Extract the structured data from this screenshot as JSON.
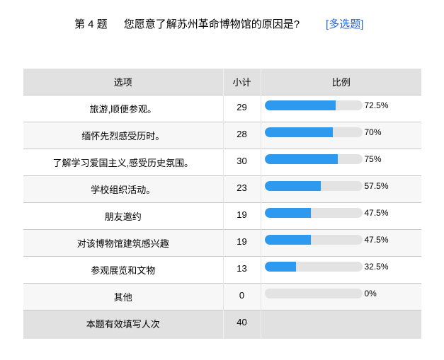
{
  "question": {
    "number_label": "第 4 题",
    "text": "您愿意了解苏州革命博物馆的原因是?",
    "type_tag": "[多选题]"
  },
  "table": {
    "columns": [
      "选项",
      "小计",
      "比例"
    ],
    "rows": [
      {
        "option": "旅游,顺便参观。",
        "count": 29,
        "percent": 72.5,
        "percent_label": "72.5%"
      },
      {
        "option": "缅怀先烈感受历时。",
        "count": 28,
        "percent": 70,
        "percent_label": "70%"
      },
      {
        "option": "了解学习爱国主义,感受历史氛围。",
        "count": 30,
        "percent": 75,
        "percent_label": "75%"
      },
      {
        "option": "学校组织活动。",
        "count": 23,
        "percent": 57.5,
        "percent_label": "57.5%"
      },
      {
        "option": "朋友邀约",
        "count": 19,
        "percent": 47.5,
        "percent_label": "47.5%"
      },
      {
        "option": "对该博物馆建筑感兴趣",
        "count": 19,
        "percent": 47.5,
        "percent_label": "47.5%"
      },
      {
        "option": "参观展览和文物",
        "count": 13,
        "percent": 32.5,
        "percent_label": "32.5%"
      },
      {
        "option": "其他",
        "count": 0,
        "percent": 0,
        "percent_label": "0%"
      }
    ],
    "footer": {
      "label": "本题有效填写人次",
      "count": 40
    }
  },
  "colors": {
    "bar_fill": "#2E9AEF",
    "bar_track": "#E3E3E3",
    "header_bg": "#E1E1E1",
    "row_alt_bg": "#F7F7F7",
    "border": "#C9C9C9",
    "link_blue": "#2266EE"
  },
  "chart_data": {
    "type": "bar",
    "title": "第 4 题 您愿意了解苏州革命博物馆的原因是? [多选题]",
    "categories": [
      "旅游,顺便参观。",
      "缅怀先烈感受历时。",
      "了解学习爱国主义,感受历史氛围。",
      "学校组织活动。",
      "朋友邀约",
      "对该博物馆建筑感兴趣",
      "参观展览和文物",
      "其他"
    ],
    "series": [
      {
        "name": "小计",
        "values": [
          29,
          28,
          30,
          23,
          19,
          19,
          13,
          0
        ]
      },
      {
        "name": "比例(%)",
        "values": [
          72.5,
          70,
          75,
          57.5,
          47.5,
          47.5,
          32.5,
          0
        ]
      }
    ],
    "total_respondents": 40,
    "xlabel": "",
    "ylabel": "比例",
    "xlim": [
      0,
      100
    ],
    "grid": false,
    "legend_position": "none"
  }
}
